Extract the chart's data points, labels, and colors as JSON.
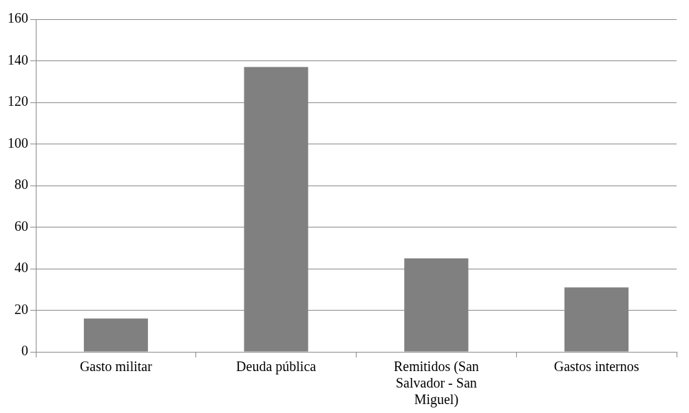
{
  "chart_data": {
    "type": "bar",
    "categories": [
      "Gasto militar",
      "Deuda pública",
      "Remitidos (San Salvador - San Miguel)",
      "Gastos internos"
    ],
    "values": [
      16,
      137,
      45,
      31
    ],
    "color": "#808080",
    "ylim": [
      0,
      160
    ],
    "yticks": [
      0,
      20,
      40,
      60,
      80,
      100,
      120,
      140,
      160
    ],
    "grid": "y"
  }
}
